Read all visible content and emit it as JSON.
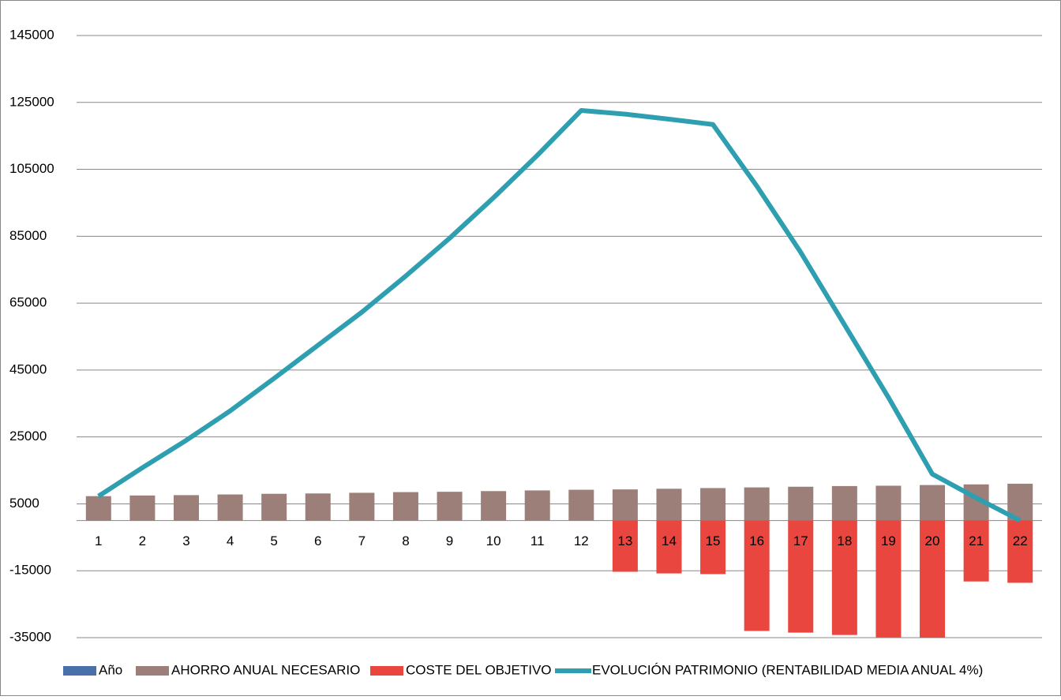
{
  "chart_data": {
    "type": "bar_line",
    "categories": [
      "1",
      "2",
      "3",
      "4",
      "5",
      "6",
      "7",
      "8",
      "9",
      "10",
      "11",
      "12",
      "13",
      "14",
      "15",
      "16",
      "17",
      "18",
      "19",
      "20",
      "21",
      "22"
    ],
    "series": [
      {
        "name": "Año",
        "color": "#4a70aa",
        "kind": "bar",
        "values": [
          1,
          2,
          3,
          4,
          5,
          6,
          7,
          8,
          9,
          10,
          11,
          12,
          13,
          14,
          15,
          16,
          17,
          18,
          19,
          20,
          21,
          22
        ]
      },
      {
        "name": "AHORRO ANUAL NECESARIO",
        "color": "#9b7f78",
        "kind": "bar",
        "values": [
          7300,
          7500,
          7600,
          7800,
          8000,
          8100,
          8300,
          8500,
          8600,
          8800,
          9000,
          9200,
          9300,
          9500,
          9700,
          9900,
          10100,
          10300,
          10400,
          10600,
          10800,
          11000
        ]
      },
      {
        "name": "COSTE DEL OBJETIVO",
        "color": "#e8463e",
        "kind": "bar",
        "values": [
          0,
          0,
          0,
          0,
          0,
          0,
          0,
          0,
          0,
          0,
          0,
          0,
          -15300,
          -15800,
          -16000,
          -33000,
          -33500,
          -34200,
          -34900,
          -35000,
          -18200,
          -18600
        ]
      },
      {
        "name": "EVOLUCIÓN PATRIMONIO (RENTABILIDAD MEDIA ANUAL 4%)",
        "color": "#2e9fb0",
        "kind": "line",
        "values": [
          7300,
          15800,
          24000,
          32800,
          42500,
          52400,
          62300,
          73100,
          84400,
          96500,
          109200,
          122600,
          121500,
          120000,
          118400,
          100000,
          80200,
          58500,
          36800,
          13900,
          6800,
          0
        ]
      }
    ],
    "ylim": [
      -35000,
      145000
    ],
    "yticks": [
      145000,
      125000,
      105000,
      85000,
      65000,
      45000,
      25000,
      5000,
      -15000,
      -35000
    ],
    "grid": true,
    "legend": "bottom"
  }
}
